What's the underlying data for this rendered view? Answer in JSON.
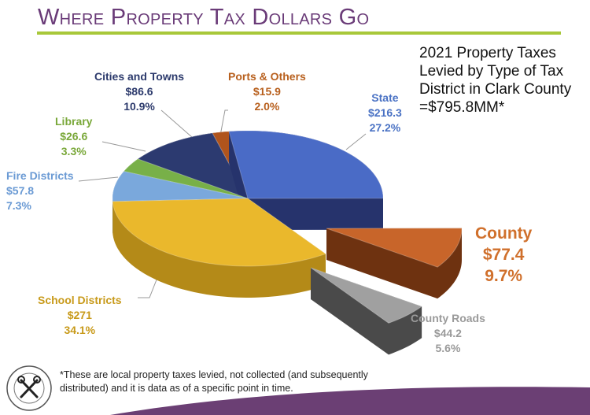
{
  "header": {
    "title": "Where Property Tax Dollars Go",
    "subtitle": "2021 Property Taxes\nLevied by Type of Tax\nDistrict in Clark County\n=$795.8MM*"
  },
  "footnote": "*These are local property taxes levied, not collected (and subsequently distributed) and it is data as of a specific point in time.",
  "logo": {
    "text": "Treasurer Clark County Washington",
    "icon": "crossed-keys-seal"
  },
  "chart_data": {
    "type": "pie",
    "title": "2021 Property Taxes Levied by Type of Tax District in Clark County =$795.8MM*",
    "units": "$ millions",
    "total": 795.8,
    "slices": [
      {
        "name": "State",
        "value": 216.3,
        "value_label": "$216.3",
        "percent": "27.2%",
        "color": "#4a6bc6",
        "side": "#26336c",
        "label_color": "#4a72c4"
      },
      {
        "name": "County",
        "value": 77.4,
        "value_label": "$77.4",
        "percent": "9.7%",
        "color": "#c8652a",
        "side": "#6e3210",
        "label_color": "#d0702c"
      },
      {
        "name": "County Roads",
        "value": 44.2,
        "value_label": "$44.2",
        "percent": "5.6%",
        "color": "#a0a0a0",
        "side": "#4a4a4a",
        "label_color": "#9a9a9a"
      },
      {
        "name": "School Districts",
        "value": 271,
        "value_label": "$271",
        "percent": "34.1%",
        "color": "#eab82c",
        "side": "#b48a18",
        "label_color": "#c89a1a"
      },
      {
        "name": "Fire Districts",
        "value": 57.8,
        "value_label": "$57.8",
        "percent": "7.3%",
        "color": "#7aa8dc",
        "side": "#4a78b0",
        "label_color": "#6a9ad4"
      },
      {
        "name": "Library",
        "value": 26.6,
        "value_label": "$26.6",
        "percent": "3.3%",
        "color": "#78b048",
        "side": "#4a7a2a",
        "label_color": "#7aa83a"
      },
      {
        "name": "Cities and Towns",
        "value": 86.6,
        "value_label": "$86.6",
        "percent": "10.9%",
        "color": "#2c3a70",
        "side": "#1a2448",
        "label_color": "#2c3a6c"
      },
      {
        "name": "Ports & Others",
        "value": 15.9,
        "value_label": "$15.9",
        "percent": "2.0%",
        "color": "#b0541c",
        "side": "#6a300e",
        "label_color": "#b8601e"
      }
    ],
    "legend": "none"
  },
  "colors": {
    "title": "#6a3b78",
    "rule": "#a8c83a",
    "wave": "#6b3f74"
  }
}
